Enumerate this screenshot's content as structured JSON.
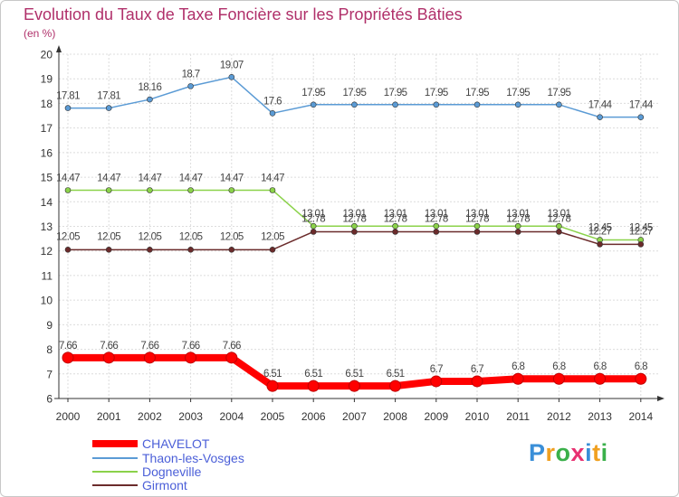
{
  "chart_data": {
    "type": "line",
    "title": "Evolution du Taux de Taxe Foncière sur les Propriétés Bâties",
    "subtitle": "(en %)",
    "xlabel": "",
    "ylabel": "(en %)",
    "ylim": [
      6,
      20
    ],
    "yticks": [
      6,
      7,
      8,
      9,
      10,
      11,
      12,
      13,
      14,
      15,
      16,
      17,
      18,
      19,
      20
    ],
    "grid": true,
    "legend_position": "bottom-left",
    "categories": [
      "2000",
      "2001",
      "2002",
      "2003",
      "2004",
      "2005",
      "2006",
      "2007",
      "2008",
      "2009",
      "2010",
      "2011",
      "2012",
      "2013",
      "2014"
    ],
    "series": [
      {
        "name": "CHAVELOT",
        "color": "#ff0000",
        "values": [
          7.66,
          7.66,
          7.66,
          7.66,
          7.66,
          6.51,
          6.51,
          6.51,
          6.51,
          6.7,
          6.7,
          6.8,
          6.8,
          6.8,
          6.8
        ],
        "labels": [
          "7.66",
          "7.66",
          "7.66",
          "7.66",
          "7.66",
          "6.51",
          "6.51",
          "6.51",
          "6.51",
          "6.7",
          "6.7",
          "6.8",
          "6.8",
          "6.8",
          "6.8"
        ]
      },
      {
        "name": "Thaon-les-Vosges",
        "color": "#5b9bd5",
        "values": [
          17.81,
          17.81,
          18.16,
          18.7,
          19.07,
          17.6,
          17.95,
          17.95,
          17.95,
          17.95,
          17.95,
          17.95,
          17.95,
          17.44,
          17.44
        ],
        "labels": [
          "17.81",
          "17.81",
          "18.16",
          "18.7",
          "19.07",
          "17.6",
          "17.95",
          "17.95",
          "17.95",
          "17.95",
          "17.95",
          "17.95",
          "17.95",
          "17.44",
          "17.44"
        ]
      },
      {
        "name": "Dogneville",
        "color": "#8bd24a",
        "values": [
          14.47,
          14.47,
          14.47,
          14.47,
          14.47,
          14.47,
          13.01,
          13.01,
          13.01,
          13.01,
          13.01,
          13.01,
          13.01,
          12.45,
          12.45
        ],
        "labels": [
          "14.47",
          "14.47",
          "14.47",
          "14.47",
          "14.47",
          "14.47",
          "13.01",
          "13.01",
          "13.01",
          "13.01",
          "13.01",
          "13.01",
          "13.01",
          "12.45",
          "12.45"
        ]
      },
      {
        "name": "Girmont",
        "color": "#6b2b2b",
        "values": [
          12.05,
          12.05,
          12.05,
          12.05,
          12.05,
          12.05,
          12.78,
          12.78,
          12.78,
          12.78,
          12.78,
          12.78,
          12.78,
          12.27,
          12.27
        ],
        "labels": [
          "12.05",
          "12.05",
          "12.05",
          "12.05",
          "12.05",
          "12.05",
          "12.78",
          "12.78",
          "12.78",
          "12.78",
          "12.78",
          "12.78",
          "12.78",
          "12.27",
          "12.27"
        ]
      }
    ]
  },
  "branding": {
    "logo_letters": [
      "P",
      "r",
      "o",
      "x",
      "i",
      "t",
      "i"
    ],
    "logo_colors": [
      "#3a8fd8",
      "#f0a020",
      "#3ab04a",
      "#e83070",
      "#3a8fd8",
      "#f0a020",
      "#3ab04a"
    ]
  }
}
